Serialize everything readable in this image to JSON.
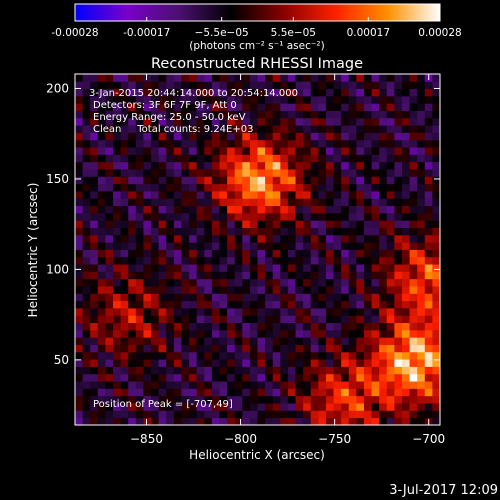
{
  "chart_data": {
    "type": "heatmap",
    "title": "Reconstructed RHESSI Image",
    "xlabel": "Heliocentric X (arcsec)",
    "ylabel": "Heliocentric Y (arcsec)",
    "xlim": [
      -888,
      -694
    ],
    "ylim": [
      14,
      208
    ],
    "x_ticks": [
      -850,
      -800,
      -750,
      -700
    ],
    "y_ticks": [
      50,
      100,
      150,
      200
    ],
    "grid": false,
    "colorbar": {
      "position": "top",
      "min": -0.00028,
      "max": 0.00028,
      "tick_values": [
        -0.00028,
        -0.00017,
        -5.5e-05,
        5.5e-05,
        0.00017,
        0.00028
      ],
      "tick_labels": [
        "-0.00028",
        "-0.00017",
        "−5.5e−05",
        "5.5e−05",
        "0.00017",
        "0.00028"
      ],
      "units_label": "(photons cm⁻² s⁻¹ asec⁻²)",
      "colors": [
        "#0000ff",
        "#7a00c8",
        "#4a1070",
        "#000000",
        "#8a0000",
        "#ff2000",
        "#ff9000",
        "#ffffff"
      ]
    },
    "annotations": [
      "3-Jan-2015 20:44:14.000 to 20:54:14.000",
      "Detectors: 3F 6F 7F 9F, Att 0",
      "Energy Range: 25.0 - 50.0 keV",
      "Clean     Total counts: 9.24E+03"
    ],
    "peak_label": "Position of Peak = [-707,49]",
    "peaks": [
      {
        "x": -707,
        "y": 49,
        "value": 0.00028
      },
      {
        "x": -790,
        "y": 150,
        "value": 0.00026
      },
      {
        "x": -700,
        "y": 95,
        "value": 0.00019
      },
      {
        "x": -745,
        "y": 28,
        "value": 0.00017
      },
      {
        "x": -860,
        "y": 75,
        "value": 0.00012
      }
    ]
  },
  "footer": {
    "timestamp": "3-Jul-2017 12:09"
  }
}
